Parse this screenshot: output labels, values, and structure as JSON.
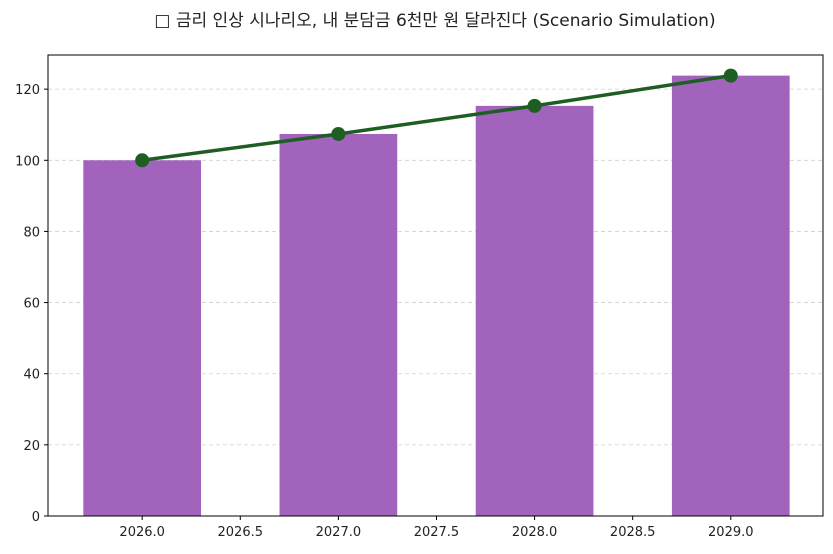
{
  "chart_data": {
    "type": "bar+line",
    "title": "□ 금리 인상 시나리오, 내 분담금 6천만 원 달라진다 (Scenario Simulation)",
    "xlabel": "",
    "ylabel": "",
    "x": [
      2026,
      2027,
      2028,
      2029
    ],
    "bar_values": [
      100,
      107.4,
      115.3,
      123.8
    ],
    "line_values": [
      100,
      107.4,
      115.3,
      123.8
    ],
    "xlim": [
      2025.52,
      2029.47
    ],
    "ylim": [
      0,
      129.6
    ],
    "x_ticks": [
      "2026.0",
      "2026.5",
      "2027.0",
      "2027.5",
      "2028.0",
      "2028.5",
      "2029.0"
    ],
    "y_ticks": [
      "0",
      "20",
      "40",
      "60",
      "80",
      "100",
      "120"
    ],
    "grid": "y dashed",
    "colors": {
      "bar": "#a163bc",
      "line": "#1e5e23",
      "grid": "#d0d0d0"
    }
  }
}
